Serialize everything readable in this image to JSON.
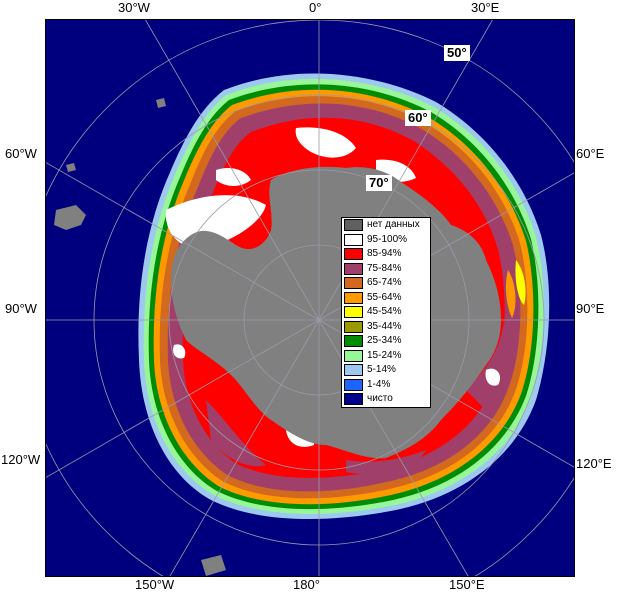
{
  "map": {
    "colors": {
      "open_water": "#00007f",
      "land": "#808080",
      "grid": "#9a9aaa"
    }
  },
  "labels": {
    "top": {
      "w30": "30°W",
      "zero": "0°",
      "e30": "30°E"
    },
    "left": {
      "w60": "60°W",
      "w90": "90°W",
      "w120": "120°W"
    },
    "right": {
      "e60": "60°E",
      "e90": "90°E",
      "e120": "120°E"
    },
    "bottom": {
      "w150": "150°W",
      "e180": "180°",
      "e150": "150°E"
    },
    "latitudes": {
      "l50": "50°",
      "l60": "60°",
      "l70": "70°"
    }
  },
  "legend": {
    "items": [
      {
        "label": "нет данных",
        "color": "#606060"
      },
      {
        "label": "95-100%",
        "color": "#ffffff"
      },
      {
        "label": "85-94%",
        "color": "#ff0000"
      },
      {
        "label": "75-84%",
        "color": "#a0406a"
      },
      {
        "label": "65-74%",
        "color": "#d2691e"
      },
      {
        "label": "55-64%",
        "color": "#ff9900"
      },
      {
        "label": "45-54%",
        "color": "#ffff00"
      },
      {
        "label": "35-44%",
        "color": "#9a9a00"
      },
      {
        "label": "25-34%",
        "color": "#008c00"
      },
      {
        "label": "15-24%",
        "color": "#98f598"
      },
      {
        "label": "5-14%",
        "color": "#9dc8f0"
      },
      {
        "label": "1-4%",
        "color": "#1e64ff"
      },
      {
        "label": "чисто",
        "color": "#00008c"
      }
    ]
  }
}
